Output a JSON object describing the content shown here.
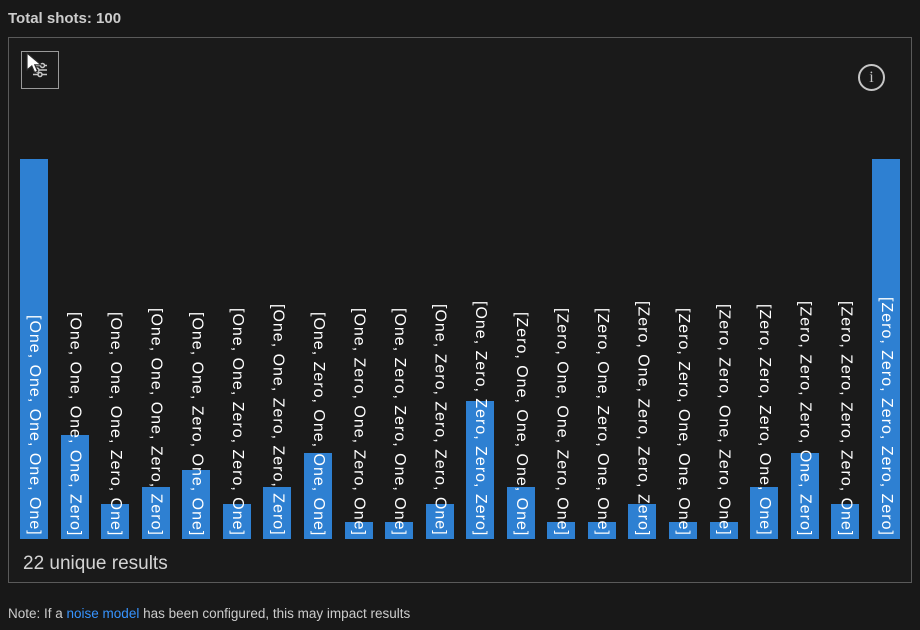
{
  "header": {
    "total_shots_label": "Total shots: 100"
  },
  "panel": {
    "unique_results_label": "22 unique results",
    "info_glyph": "i"
  },
  "note": {
    "prefix": "Note: If a ",
    "link": "noise model",
    "suffix": " has been configured, this may impact results"
  },
  "colors": {
    "background": "#181818",
    "panel_border": "#5a5a5a",
    "bar": "#2e80d2",
    "bar_label_text": "#ffffff",
    "text": "#cccccc",
    "link": "#3794ff"
  },
  "chart_data": {
    "type": "bar",
    "title": "Total shots: 100",
    "orientation": "vertical",
    "categories": [
      "[One, One, One, One, One]",
      "[One, One, One, One, Zero]",
      "[One, One, One, Zero, One]",
      "[One, One, One, Zero, Zero]",
      "[One, One, Zero, One, One]",
      "[One, One, Zero, Zero, One]",
      "[One, One, Zero, Zero, Zero]",
      "[One, Zero, One, One, One]",
      "[One, Zero, One, Zero, One]",
      "[One, Zero, Zero, One, One]",
      "[One, Zero, Zero, Zero, One]",
      "[One, Zero, Zero, Zero, Zero]",
      "[Zero, One, One, One, One]",
      "[Zero, One, One, Zero, One]",
      "[Zero, One, Zero, One, One]",
      "[Zero, One, Zero, Zero, Zero]",
      "[Zero, Zero, One, One, One]",
      "[Zero, Zero, One, Zero, One]",
      "[Zero, Zero, Zero, One, One]",
      "[Zero, Zero, Zero, One, Zero]",
      "[Zero, Zero, Zero, Zero, One]",
      "[Zero, Zero, Zero, Zero, Zero]"
    ],
    "values": [
      22,
      6,
      2,
      3,
      4,
      2,
      3,
      5,
      1,
      1,
      2,
      8,
      3,
      1,
      1,
      2,
      1,
      1,
      3,
      5,
      2,
      22
    ],
    "total_shots": 100,
    "unique_results": 22,
    "ylim": [
      0,
      22
    ],
    "grid": false,
    "legend": "none",
    "bar_color": "#2e80d2",
    "bar_label_position": "inside-vertical",
    "xlabel": "",
    "ylabel": ""
  }
}
